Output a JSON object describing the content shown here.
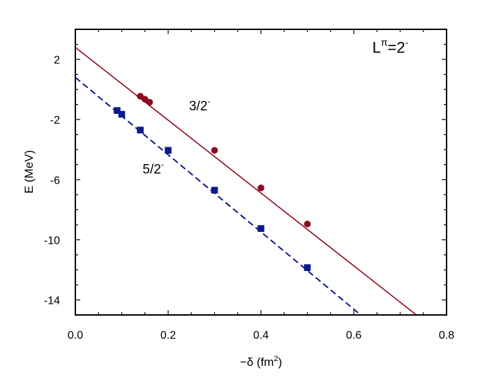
{
  "chart_data": {
    "type": "scatter",
    "xlabel": "−δ (fm",
    "xlabel_sup": "2",
    "xlabel_tail": ")",
    "ylabel": "E  (MeV)",
    "xlim": [
      0.0,
      0.8
    ],
    "ylim": [
      -15,
      4
    ],
    "x_ticks": [
      0.0,
      0.2,
      0.4,
      0.6,
      0.8
    ],
    "x_tick_labels": [
      "0.0",
      "0.2",
      "0.4",
      "0.6",
      "0.8"
    ],
    "y_ticks": [
      2,
      -2,
      -6,
      -10,
      -14
    ],
    "y_tick_labels": [
      "2",
      "-2",
      "-6",
      "-10",
      "-14"
    ],
    "annotation": {
      "base": "L",
      "sup1": "π",
      "mid": "=2",
      "sup2": "-"
    },
    "series": [
      {
        "name": "3/2",
        "name_sup": "-",
        "color": "#8b0a1e",
        "marker": "circle",
        "line_style": "solid",
        "fit": {
          "x0": 0.0,
          "y0": 2.8,
          "x1": 0.735,
          "y1": -15.0
        },
        "points": [
          {
            "x": 0.14,
            "y": -0.45
          },
          {
            "x": 0.15,
            "y": -0.65
          },
          {
            "x": 0.16,
            "y": -0.85
          },
          {
            "x": 0.3,
            "y": -4.05
          },
          {
            "x": 0.4,
            "y": -6.55
          },
          {
            "x": 0.5,
            "y": -8.95
          }
        ]
      },
      {
        "name": "5/2",
        "name_sup": "-",
        "color": "#0a1a8c",
        "marker": "square",
        "line_style": "dashed",
        "fit": {
          "x0": 0.0,
          "y0": 0.8,
          "x1": 0.615,
          "y1": -15.0
        },
        "points": [
          {
            "x": 0.09,
            "y": -1.4
          },
          {
            "x": 0.1,
            "y": -1.65
          },
          {
            "x": 0.14,
            "y": -2.7
          },
          {
            "x": 0.2,
            "y": -4.05
          },
          {
            "x": 0.3,
            "y": -6.7
          },
          {
            "x": 0.4,
            "y": -9.25
          },
          {
            "x": 0.5,
            "y": -11.85
          }
        ]
      }
    ]
  }
}
